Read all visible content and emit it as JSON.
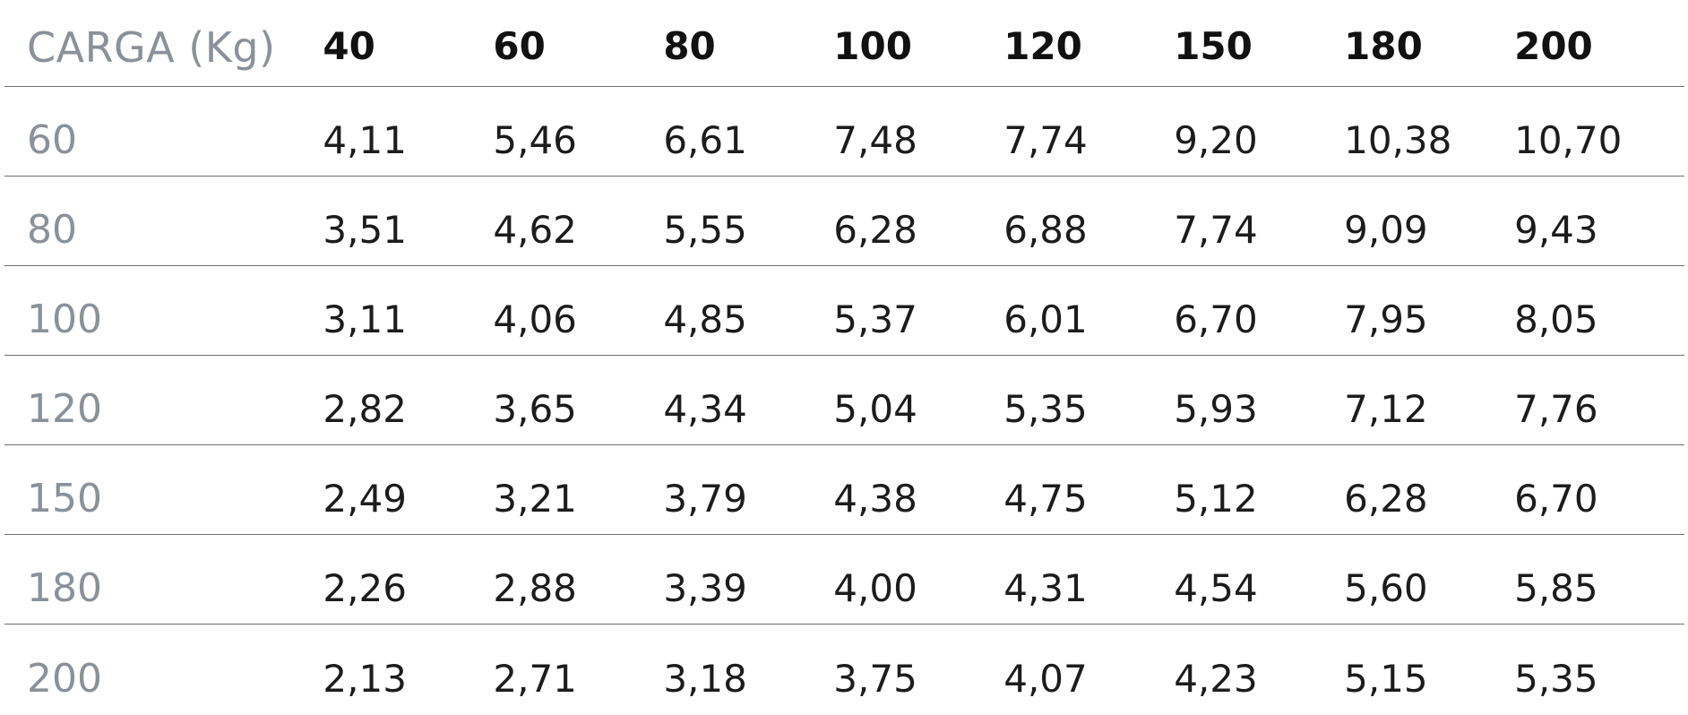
{
  "table": {
    "corner_label": "CARGA (Kg)",
    "columns": [
      "40",
      "60",
      "80",
      "100",
      "120",
      "150",
      "180",
      "200"
    ],
    "rows": [
      {
        "label": "60",
        "values": [
          "4,11",
          "5,46",
          "6,61",
          "7,48",
          "7,74",
          "9,20",
          "10,38",
          "10,70"
        ]
      },
      {
        "label": "80",
        "values": [
          "3,51",
          "4,62",
          "5,55",
          "6,28",
          "6,88",
          "7,74",
          "9,09",
          "9,43"
        ]
      },
      {
        "label": "100",
        "values": [
          "3,11",
          "4,06",
          "4,85",
          "5,37",
          "6,01",
          "6,70",
          "7,95",
          "8,05"
        ]
      },
      {
        "label": "120",
        "values": [
          "2,82",
          "3,65",
          "4,34",
          "5,04",
          "5,35",
          "5,93",
          "7,12",
          "7,76"
        ]
      },
      {
        "label": "150",
        "values": [
          "2,49",
          "3,21",
          "3,79",
          "4,38",
          "4,75",
          "5,12",
          "6,28",
          "6,70"
        ]
      },
      {
        "label": "180",
        "values": [
          "2,26",
          "2,88",
          "3,39",
          "4,00",
          "4,31",
          "4,54",
          "5,60",
          "5,85"
        ]
      },
      {
        "label": "200",
        "values": [
          "2,13",
          "2,71",
          "3,18",
          "3,75",
          "4,07",
          "4,23",
          "5,15",
          "5,35"
        ]
      }
    ]
  }
}
